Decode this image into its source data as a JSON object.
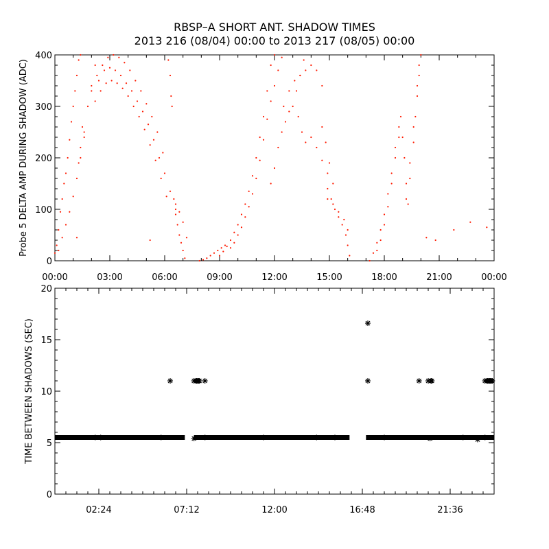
{
  "title": {
    "line1": "RBSP–A SHORT ANT. SHADOW TIMES",
    "line2": "2013 216 (08/04) 00:00 to 2013 217 (08/05) 00:00"
  },
  "colors": {
    "top_series": "#ff1a00",
    "bottom_series": "#000000",
    "axes": "#000000"
  },
  "chart_data": [
    {
      "type": "scatter",
      "ylabel": "Probe 5 DELTA AMP DURING SHADOW (ADC)",
      "xlabel": "",
      "xlim_hours": [
        0,
        24
      ],
      "ylim": [
        0,
        400
      ],
      "x_tick_labels": [
        "00:00",
        "03:00",
        "06:00",
        "09:00",
        "12:00",
        "15:00",
        "18:00",
        "21:00",
        "00:00"
      ],
      "x_tick_hours": [
        0,
        3,
        6,
        9,
        12,
        15,
        18,
        21,
        24
      ],
      "y_tick_labels": [
        "0",
        "100",
        "200",
        "300",
        "400"
      ],
      "y_ticks": [
        0,
        100,
        200,
        300,
        400
      ],
      "marker": "dot",
      "series": [
        {
          "color": "#ff1a00",
          "points_hours_value": [
            [
              0.0,
              15
            ],
            [
              0.1,
              30
            ],
            [
              0.2,
              60
            ],
            [
              0.3,
              95
            ],
            [
              0.4,
              120
            ],
            [
              0.5,
              150
            ],
            [
              0.6,
              170
            ],
            [
              0.7,
              200
            ],
            [
              0.8,
              235
            ],
            [
              0.9,
              270
            ],
            [
              1.0,
              300
            ],
            [
              1.1,
              330
            ],
            [
              1.2,
              360
            ],
            [
              1.3,
              390
            ],
            [
              1.4,
              400
            ],
            [
              0.2,
              20
            ],
            [
              0.4,
              45
            ],
            [
              0.6,
              70
            ],
            [
              0.8,
              95
            ],
            [
              1.0,
              125
            ],
            [
              1.2,
              160
            ],
            [
              1.4,
              200
            ],
            [
              1.6,
              250
            ],
            [
              1.8,
              300
            ],
            [
              2.0,
              340
            ],
            [
              2.2,
              380
            ],
            [
              1.5,
              260
            ],
            [
              1.6,
              240
            ],
            [
              1.4,
              220
            ],
            [
              1.3,
              190
            ],
            [
              2.0,
              330
            ],
            [
              2.3,
              360
            ],
            [
              2.6,
              380
            ],
            [
              2.9,
              395
            ],
            [
              3.2,
              400
            ],
            [
              3.5,
              395
            ],
            [
              3.8,
              385
            ],
            [
              4.1,
              370
            ],
            [
              4.4,
              350
            ],
            [
              4.7,
              330
            ],
            [
              5.0,
              305
            ],
            [
              5.3,
              280
            ],
            [
              5.6,
              250
            ],
            [
              5.9,
              210
            ],
            [
              2.2,
              310
            ],
            [
              2.5,
              330
            ],
            [
              2.8,
              345
            ],
            [
              3.1,
              350
            ],
            [
              3.4,
              345
            ],
            [
              3.7,
              335
            ],
            [
              4.0,
              320
            ],
            [
              4.3,
              300
            ],
            [
              4.6,
              280
            ],
            [
              4.9,
              255
            ],
            [
              5.2,
              225
            ],
            [
              5.5,
              195
            ],
            [
              5.8,
              160
            ],
            [
              6.1,
              125
            ],
            [
              2.4,
              350
            ],
            [
              2.7,
              370
            ],
            [
              3.0,
              375
            ],
            [
              3.3,
              370
            ],
            [
              3.6,
              360
            ],
            [
              3.9,
              345
            ],
            [
              4.2,
              330
            ],
            [
              4.5,
              310
            ],
            [
              4.8,
              290
            ],
            [
              5.1,
              265
            ],
            [
              5.4,
              235
            ],
            [
              5.7,
              200
            ],
            [
              6.0,
              170
            ],
            [
              6.3,
              135
            ],
            [
              6.6,
              100
            ],
            [
              6.2,
              390
            ],
            [
              6.3,
              360
            ],
            [
              6.35,
              320
            ],
            [
              6.4,
              300
            ],
            [
              6.5,
              120
            ],
            [
              6.6,
              90
            ],
            [
              6.7,
              70
            ],
            [
              6.8,
              50
            ],
            [
              6.9,
              35
            ],
            [
              7.0,
              20
            ],
            [
              7.1,
              5
            ],
            [
              6.6,
              110
            ],
            [
              6.8,
              95
            ],
            [
              7.0,
              75
            ],
            [
              7.2,
              45
            ],
            [
              1.2,
              45
            ],
            [
              5.2,
              40
            ],
            [
              7.9,
              0
            ],
            [
              8.1,
              2
            ],
            [
              8.3,
              5
            ],
            [
              8.5,
              10
            ],
            [
              8.7,
              15
            ],
            [
              8.9,
              20
            ],
            [
              9.1,
              25
            ],
            [
              9.3,
              30
            ],
            [
              9.0,
              10
            ],
            [
              9.2,
              18
            ],
            [
              9.4,
              28
            ],
            [
              9.6,
              40
            ],
            [
              9.8,
              55
            ],
            [
              10.0,
              70
            ],
            [
              10.2,
              90
            ],
            [
              10.4,
              110
            ],
            [
              10.6,
              135
            ],
            [
              10.8,
              165
            ],
            [
              11.0,
              200
            ],
            [
              11.2,
              240
            ],
            [
              11.4,
              280
            ],
            [
              11.6,
              330
            ],
            [
              11.8,
              380
            ],
            [
              12.0,
              400
            ],
            [
              9.6,
              25
            ],
            [
              9.8,
              35
            ],
            [
              10.0,
              50
            ],
            [
              10.2,
              65
            ],
            [
              10.4,
              85
            ],
            [
              10.6,
              105
            ],
            [
              10.8,
              130
            ],
            [
              11.0,
              160
            ],
            [
              11.2,
              195
            ],
            [
              11.4,
              235
            ],
            [
              11.6,
              275
            ],
            [
              11.8,
              310
            ],
            [
              12.0,
              340
            ],
            [
              12.2,
              370
            ],
            [
              12.4,
              395
            ],
            [
              11.8,
              150
            ],
            [
              12.0,
              180
            ],
            [
              12.2,
              220
            ],
            [
              12.4,
              250
            ],
            [
              12.6,
              270
            ],
            [
              12.8,
              290
            ],
            [
              13.0,
              300
            ],
            [
              13.2,
              330
            ],
            [
              13.4,
              360
            ],
            [
              13.6,
              390
            ],
            [
              12.5,
              300
            ],
            [
              12.8,
              330
            ],
            [
              13.1,
              350
            ],
            [
              13.4,
              360
            ],
            [
              13.7,
              370
            ],
            [
              14.0,
              380
            ],
            [
              14.3,
              370
            ],
            [
              14.6,
              340
            ],
            [
              13.3,
              280
            ],
            [
              13.5,
              250
            ],
            [
              13.7,
              230
            ],
            [
              14.0,
              240
            ],
            [
              14.3,
              220
            ],
            [
              14.6,
              195
            ],
            [
              14.9,
              170
            ],
            [
              14.6,
              260
            ],
            [
              14.8,
              230
            ],
            [
              15.0,
              190
            ],
            [
              15.2,
              150
            ],
            [
              14.9,
              140
            ],
            [
              15.1,
              120
            ],
            [
              15.3,
              100
            ],
            [
              15.5,
              85
            ],
            [
              15.7,
              70
            ],
            [
              15.9,
              50
            ],
            [
              16.0,
              30
            ],
            [
              16.1,
              10
            ],
            [
              14.9,
              120
            ],
            [
              15.2,
              110
            ],
            [
              15.5,
              95
            ],
            [
              15.8,
              80
            ],
            [
              16.0,
              60
            ],
            [
              17.2,
              0
            ],
            [
              17.4,
              15
            ],
            [
              17.6,
              35
            ],
            [
              17.8,
              60
            ],
            [
              18.0,
              90
            ],
            [
              18.2,
              130
            ],
            [
              18.4,
              170
            ],
            [
              18.6,
              220
            ],
            [
              18.8,
              260
            ],
            [
              18.9,
              280
            ],
            [
              19.0,
              240
            ],
            [
              19.1,
              200
            ],
            [
              19.2,
              150
            ],
            [
              19.3,
              110
            ],
            [
              17.6,
              20
            ],
            [
              17.8,
              40
            ],
            [
              18.0,
              70
            ],
            [
              18.2,
              105
            ],
            [
              18.4,
              150
            ],
            [
              18.6,
              200
            ],
            [
              18.8,
              240
            ],
            [
              19.2,
              120
            ],
            [
              19.4,
              160
            ],
            [
              19.6,
              230
            ],
            [
              19.7,
              280
            ],
            [
              19.8,
              320
            ],
            [
              19.9,
              360
            ],
            [
              20.0,
              400
            ],
            [
              19.4,
              190
            ],
            [
              19.6,
              260
            ],
            [
              19.8,
              340
            ],
            [
              19.9,
              380
            ],
            [
              20.3,
              45
            ],
            [
              21.8,
              60
            ],
            [
              22.7,
              75
            ],
            [
              23.6,
              65
            ],
            [
              20.8,
              40
            ]
          ]
        }
      ]
    },
    {
      "type": "scatter",
      "ylabel": "TIME BETWEEN SHADOWS (SEC)",
      "xlabel": "",
      "xlim_hours": [
        0,
        24
      ],
      "ylim": [
        0,
        20
      ],
      "x_tick_labels": [
        "02:24",
        "07:12",
        "12:00",
        "16:48",
        "21:36"
      ],
      "x_tick_hours": [
        2.4,
        7.2,
        12.0,
        16.8,
        21.6
      ],
      "y_tick_labels": [
        "0",
        "5",
        "10",
        "15",
        "20"
      ],
      "y_ticks": [
        0,
        5,
        10,
        15,
        20
      ],
      "marker": "asterisk",
      "baseline": {
        "value": 5.5,
        "segments_hours": [
          [
            0.0,
            7.1
          ],
          [
            7.6,
            16.1
          ],
          [
            17.0,
            24.0
          ]
        ]
      },
      "series": [
        {
          "color": "#000000",
          "points_hours_value": [
            [
              6.3,
              11.0
            ],
            [
              7.6,
              11.0
            ],
            [
              7.7,
              11.0
            ],
            [
              7.75,
              11.0
            ],
            [
              7.8,
              11.0
            ],
            [
              7.85,
              11.0
            ],
            [
              7.9,
              11.0
            ],
            [
              8.2,
              11.0
            ],
            [
              17.1,
              16.6
            ],
            [
              17.1,
              11.0
            ],
            [
              19.9,
              11.0
            ],
            [
              20.4,
              11.0
            ],
            [
              20.55,
              11.0
            ],
            [
              20.6,
              11.0
            ],
            [
              23.5,
              11.0
            ],
            [
              23.6,
              11.0
            ],
            [
              23.65,
              11.0
            ],
            [
              23.7,
              11.0
            ],
            [
              23.75,
              11.0
            ],
            [
              23.8,
              11.0
            ],
            [
              23.85,
              11.0
            ],
            [
              23.9,
              11.0
            ],
            [
              2.2,
              5.5
            ],
            [
              2.5,
              5.5
            ],
            [
              5.8,
              5.5
            ],
            [
              7.6,
              5.4
            ],
            [
              8.2,
              5.5
            ],
            [
              11.4,
              5.5
            ],
            [
              14.3,
              5.5
            ],
            [
              15.3,
              5.5
            ],
            [
              18.0,
              5.5
            ],
            [
              20.5,
              5.4
            ],
            [
              22.3,
              5.5
            ],
            [
              23.1,
              5.3
            ],
            [
              23.5,
              5.5
            ]
          ]
        }
      ]
    }
  ]
}
